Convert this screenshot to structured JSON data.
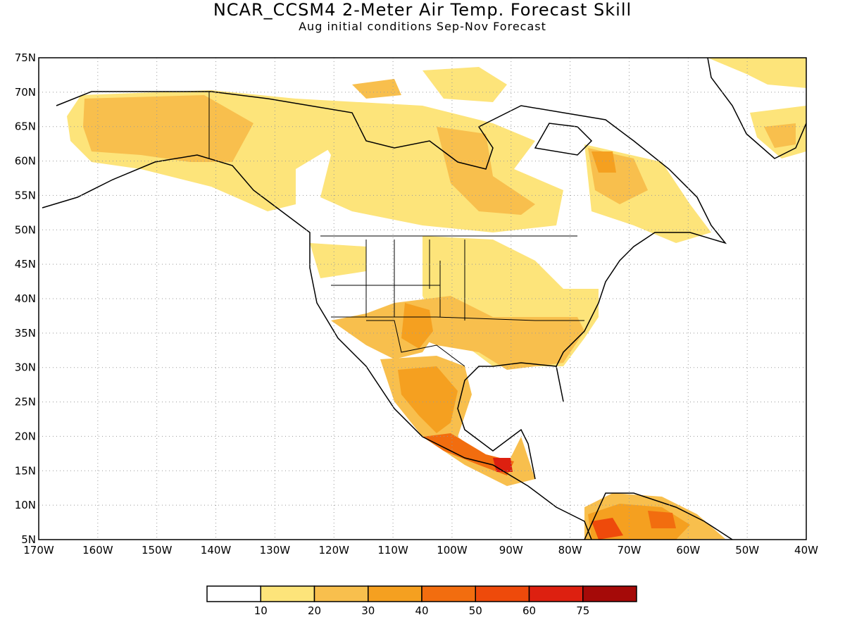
{
  "title": "NCAR_CCSM4 2-Meter Air Temp. Forecast Skill",
  "subtitle": "Aug initial conditions  Sep-Nov Forecast",
  "map": {
    "lon_range": [
      -170,
      -40
    ],
    "lat_range": [
      5,
      75
    ],
    "lat_ticks": [
      {
        "value": 75,
        "label": "75N"
      },
      {
        "value": 70,
        "label": "70N"
      },
      {
        "value": 65,
        "label": "65N"
      },
      {
        "value": 60,
        "label": "60N"
      },
      {
        "value": 55,
        "label": "55N"
      },
      {
        "value": 50,
        "label": "50N"
      },
      {
        "value": 45,
        "label": "45N"
      },
      {
        "value": 40,
        "label": "40N"
      },
      {
        "value": 35,
        "label": "35N"
      },
      {
        "value": 30,
        "label": "30N"
      },
      {
        "value": 25,
        "label": "25N"
      },
      {
        "value": 20,
        "label": "20N"
      },
      {
        "value": 15,
        "label": "15N"
      },
      {
        "value": 10,
        "label": "10N"
      },
      {
        "value": 5,
        "label": "5N"
      }
    ],
    "lon_ticks": [
      {
        "value": -170,
        "label": "170W"
      },
      {
        "value": -160,
        "label": "160W"
      },
      {
        "value": -150,
        "label": "150W"
      },
      {
        "value": -140,
        "label": "140W"
      },
      {
        "value": -130,
        "label": "130W"
      },
      {
        "value": -120,
        "label": "120W"
      },
      {
        "value": -110,
        "label": "110W"
      },
      {
        "value": -100,
        "label": "100W"
      },
      {
        "value": -90,
        "label": "90W"
      },
      {
        "value": -80,
        "label": "80W"
      },
      {
        "value": -70,
        "label": "70W"
      },
      {
        "value": -60,
        "label": "60W"
      },
      {
        "value": -50,
        "label": "50W"
      },
      {
        "value": -40,
        "label": "40W"
      }
    ],
    "grid": "dotted"
  },
  "legend": {
    "bins": [
      {
        "color": "#ffffff"
      },
      {
        "color": "#fde47a",
        "label": "10"
      },
      {
        "color": "#f8bf4d",
        "label": "20"
      },
      {
        "color": "#f5a020",
        "label": "30"
      },
      {
        "color": "#f26d0f",
        "label": "40"
      },
      {
        "color": "#ee4a0b",
        "label": "50"
      },
      {
        "color": "#dd2010",
        "label": "60"
      },
      {
        "color": "#a50a08",
        "label": "75"
      }
    ]
  }
}
